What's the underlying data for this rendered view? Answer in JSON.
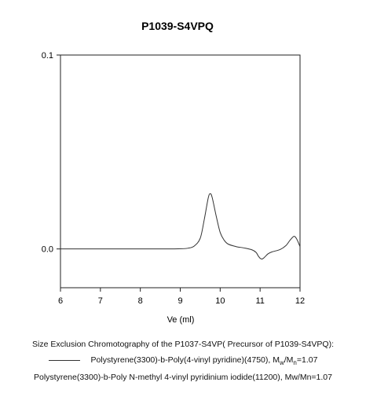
{
  "chart_data": {
    "type": "line",
    "title": "P1039-S4VPQ",
    "xlabel": "Ve (ml)",
    "ylabel": "",
    "xlim": [
      6,
      12
    ],
    "ylim": [
      -0.02,
      0.1
    ],
    "x_ticks": [
      "6",
      "7",
      "8",
      "9",
      "10",
      "11",
      "12"
    ],
    "y_ticks": [
      "0.0",
      "0.1"
    ],
    "y_tick_values": [
      0.0,
      0.1
    ],
    "grid": false,
    "series": [
      {
        "color": "#333333",
        "x": [
          6.0,
          8.5,
          9.0,
          9.2,
          9.35,
          9.5,
          9.6,
          9.7,
          9.75,
          9.8,
          9.9,
          10.0,
          10.1,
          10.2,
          10.4,
          10.6,
          10.8,
          10.9,
          10.95,
          11.0,
          11.05,
          11.1,
          11.2,
          11.3,
          11.5,
          11.65,
          11.75,
          11.85,
          11.92,
          12.0
        ],
        "y": [
          0.0,
          0.0,
          0.0001,
          0.0004,
          0.0015,
          0.0055,
          0.015,
          0.0262,
          0.0285,
          0.0265,
          0.017,
          0.0085,
          0.0045,
          0.0025,
          0.0012,
          0.0005,
          -0.0005,
          -0.0018,
          -0.0035,
          -0.0048,
          -0.0052,
          -0.0045,
          -0.0025,
          -0.0015,
          -0.0003,
          0.0018,
          0.0045,
          0.0065,
          0.005,
          0.0012
        ]
      }
    ]
  },
  "caption": {
    "line1": "Size Exclusion Chromotography of the P1037-S4VP( Precursor of P1039-S4VPQ):",
    "line2_main": "Polystyrene(3300)-b-Poly(4-vinyl pyridine)(4750), M",
    "line2_sub1": "w",
    "line2_slash": "/M",
    "line2_sub2": "n",
    "line2_end": "=1.07",
    "line3": "Polystyrene(3300)-b-Poly N-methyl 4-vinyl pyridinium iodide(11200), Mw/Mn=1.07"
  }
}
